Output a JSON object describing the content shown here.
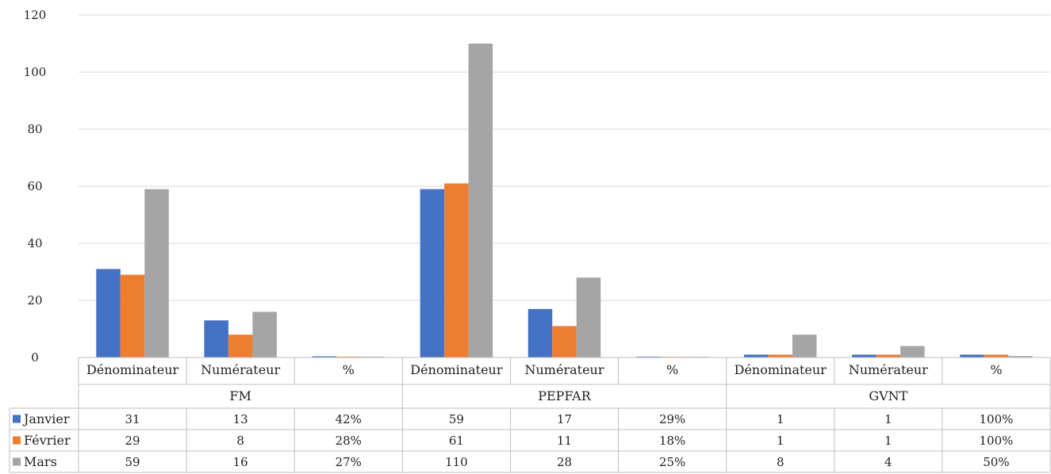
{
  "chart_data": {
    "type": "bar",
    "title": "",
    "xlabel": "",
    "ylabel": "",
    "ylim": [
      0,
      120
    ],
    "yticks": [
      "0",
      "20",
      "40",
      "60",
      "80",
      "100",
      "120"
    ],
    "grid": true,
    "legend_placement": "left of data table",
    "groups": [
      {
        "name": "FM",
        "categories": [
          "Dénominateur",
          "Numérateur",
          "%"
        ]
      },
      {
        "name": "PEPFAR",
        "categories": [
          "Dénominateur",
          "Numérateur",
          "%"
        ]
      },
      {
        "name": "GVNT",
        "categories": [
          "Dénominateur",
          "Numérateur",
          "%"
        ]
      }
    ],
    "categories": [
      "Dénominateur",
      "Numérateur",
      "%",
      "Dénominateur",
      "Numérateur",
      "%",
      "Dénominateur",
      "Numérateur",
      "%"
    ],
    "series": [
      {
        "name": "Janvier",
        "color": "#4472C4",
        "values": [
          31,
          13,
          0.42,
          59,
          17,
          0.29,
          1,
          1,
          1.0
        ],
        "labels": [
          "31",
          "13",
          "42%",
          "59",
          "17",
          "29%",
          "1",
          "1",
          "100%"
        ]
      },
      {
        "name": "Février",
        "color": "#ED7D31",
        "values": [
          29,
          8,
          0.28,
          61,
          11,
          0.18,
          1,
          1,
          1.0
        ],
        "labels": [
          "29",
          "8",
          "28%",
          "61",
          "11",
          "18%",
          "1",
          "1",
          "100%"
        ]
      },
      {
        "name": "Mars",
        "color": "#A5A5A5",
        "values": [
          59,
          16,
          0.27,
          110,
          28,
          0.25,
          8,
          4,
          0.5
        ],
        "labels": [
          "59",
          "16",
          "27%",
          "110",
          "28",
          "25%",
          "8",
          "4",
          "50%"
        ]
      }
    ]
  }
}
